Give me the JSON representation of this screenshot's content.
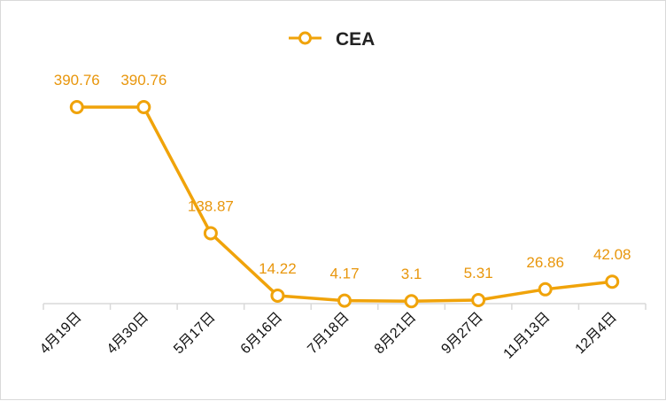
{
  "chart_data": {
    "type": "line",
    "title": "",
    "xlabel": "",
    "ylabel": "",
    "categories": [
      "4月19日",
      "4月30日",
      "5月17日",
      "6月16日",
      "7月18日",
      "8月21日",
      "9月27日",
      "11月13日",
      "12月4日"
    ],
    "series": [
      {
        "name": "CEA",
        "values": [
          390.76,
          390.76,
          138.87,
          14.22,
          4.17,
          3.1,
          5.31,
          26.86,
          42.08
        ],
        "data_labels": [
          "390.76",
          "390.76",
          "138.87",
          "14.22",
          "4.17",
          "3.1",
          "5.31",
          "26.86",
          "42.08"
        ],
        "color": "#F0A30A"
      }
    ],
    "ylim": [
      0,
      420
    ],
    "y_axis_visible": false,
    "grid": false,
    "legend": "top-center",
    "label_color": "#E8960C"
  }
}
